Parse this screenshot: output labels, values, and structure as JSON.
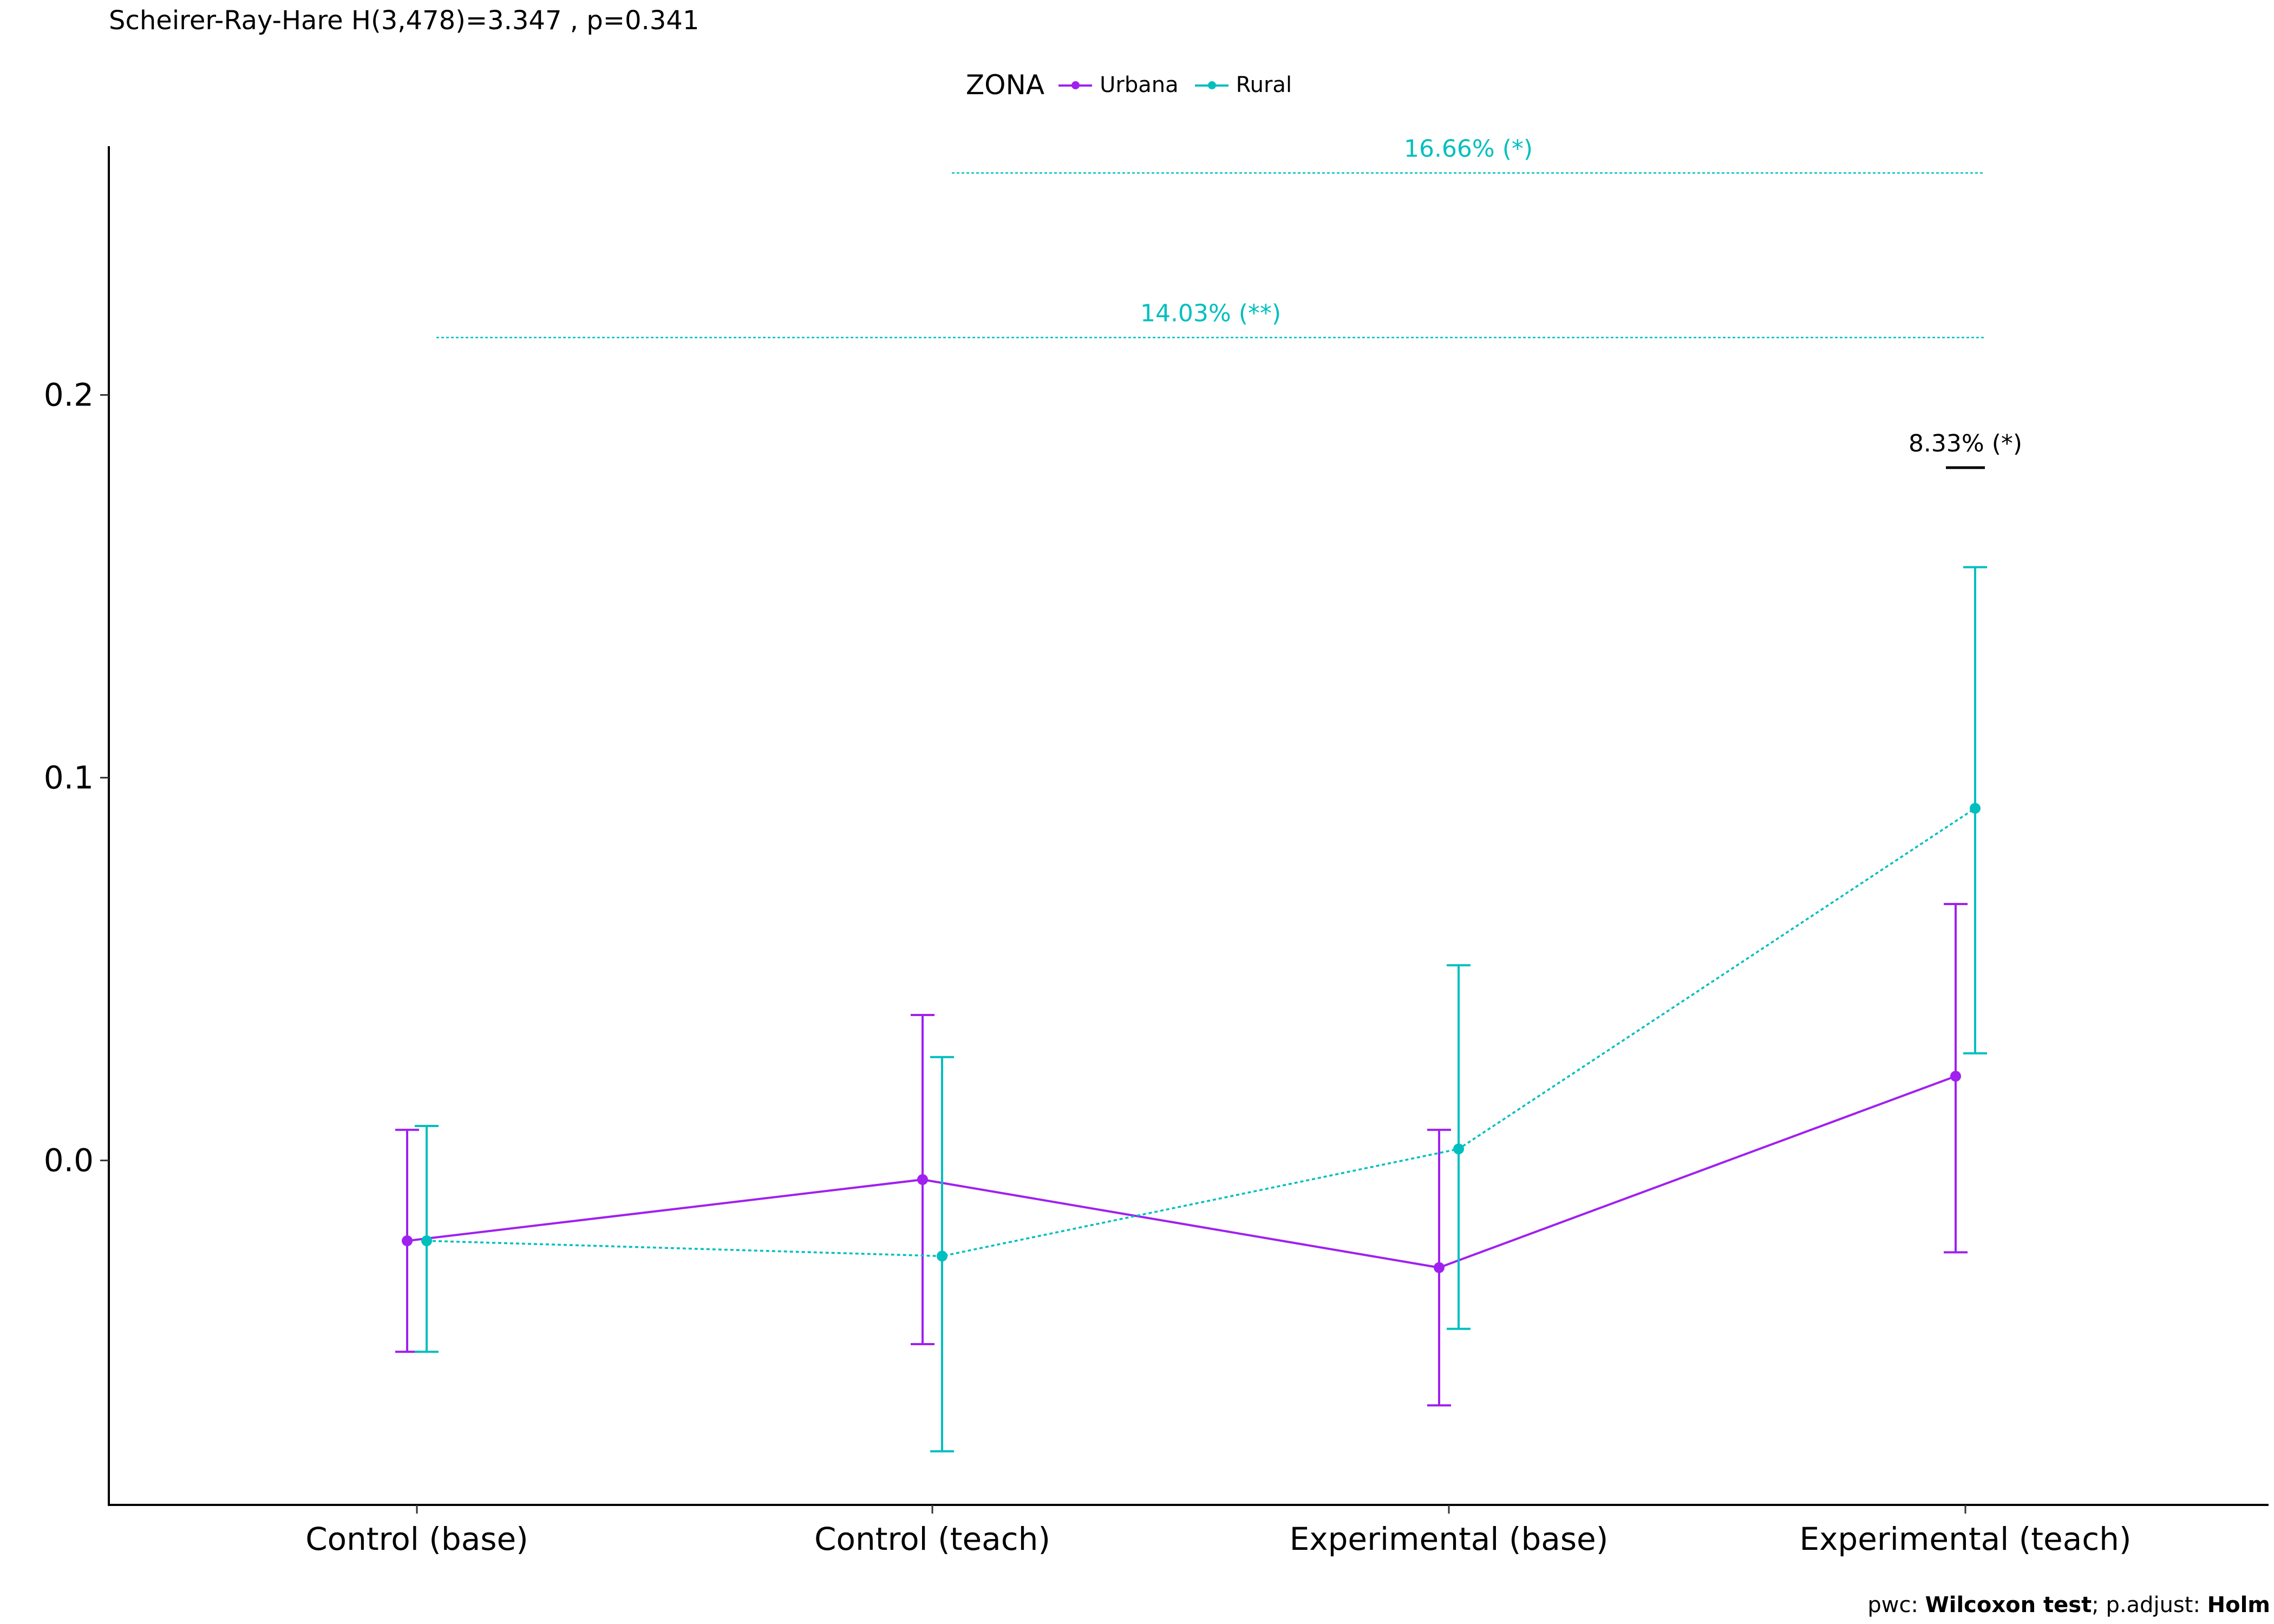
{
  "subtitle": "Scheirer-Ray-Hare H(3,478)=3.347 , p=0.341",
  "caption": {
    "prefix": "pwc: ",
    "test": "Wilcoxon test",
    "middle": "; p.adjust: ",
    "method": "Holm"
  },
  "legend": {
    "title": "ZONA",
    "position": "top-center",
    "items": [
      {
        "label": "Urbana",
        "color": "#A020F0",
        "linetype": "solid"
      },
      {
        "label": "Rural",
        "color": "#00BFBF",
        "linetype": "dotted"
      }
    ]
  },
  "chart_data": {
    "type": "line",
    "categories": [
      "Control (base)",
      "Control (teach)",
      "Experimental (base)",
      "Experimental (teach)"
    ],
    "ylim": [
      -0.09,
      0.265
    ],
    "yticks": [
      0.0,
      0.1,
      0.2
    ],
    "ytick_labels": [
      "0.0",
      "0.1",
      "0.2"
    ],
    "grid": false,
    "series": [
      {
        "name": "Urbana",
        "color": "#A020F0",
        "linetype": "solid",
        "values": [
          -0.021,
          -0.005,
          -0.028,
          0.022
        ],
        "error_low": [
          -0.05,
          -0.048,
          -0.064,
          -0.024
        ],
        "error_high": [
          0.008,
          0.038,
          0.008,
          0.067
        ]
      },
      {
        "name": "Rural",
        "color": "#00BFBF",
        "linetype": "dotted",
        "values": [
          -0.021,
          -0.025,
          0.003,
          0.092
        ],
        "error_low": [
          -0.05,
          -0.076,
          -0.044,
          0.028
        ],
        "error_high": [
          0.009,
          0.027,
          0.051,
          0.155
        ]
      }
    ],
    "annotations": [
      {
        "label": "16.66% (*)",
        "color": "#00BFBF",
        "from": "Control (teach)",
        "to": "Experimental (teach)",
        "y": 0.258,
        "style": "dotted"
      },
      {
        "label": "14.03% (**)",
        "color": "#00BFBF",
        "from": "Control (base)",
        "to": "Experimental (teach)",
        "y": 0.215,
        "style": "dotted"
      },
      {
        "label": "8.33% (*)",
        "color": "#000000",
        "from": "Experimental (teach)",
        "to": "Experimental (teach)",
        "y": 0.181,
        "style": "solid"
      }
    ]
  }
}
